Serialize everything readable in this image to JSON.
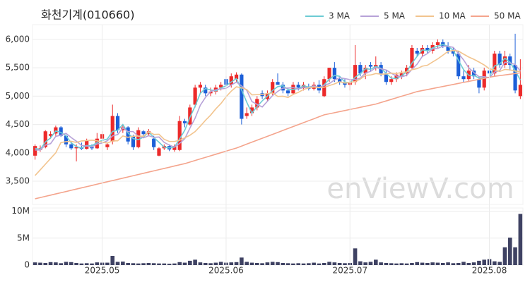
{
  "chart_data": [
    {
      "type": "candlestick",
      "title": "화천기계(010660)",
      "watermark": "enViewV.com",
      "up_color": "#ec2a2a",
      "down_color": "#1c5fd8",
      "grid": true,
      "ylim": [
        3090,
        6260
      ],
      "yticks": [
        {
          "value": 3500,
          "label": "3,500"
        },
        {
          "value": 4000,
          "label": "4,000"
        },
        {
          "value": 4500,
          "label": "4,500"
        },
        {
          "value": 5000,
          "label": "5,000"
        },
        {
          "value": 5500,
          "label": "5,500"
        },
        {
          "value": 6000,
          "label": "6,000"
        }
      ],
      "open": [
        3950,
        4050,
        4100,
        4300,
        4340,
        4450,
        4300,
        4150,
        4080,
        4100,
        4070,
        4100,
        4080,
        4250,
        4100,
        4200,
        4650,
        4400,
        4450,
        4300,
        4100,
        4380,
        4330,
        4250,
        3950,
        4080,
        4120,
        4050,
        4050,
        4560,
        4500,
        4850,
        5150,
        5150,
        5050,
        5080,
        5150,
        5300,
        5200,
        5300,
        5380,
        4650,
        4700,
        4800,
        5050,
        4950,
        5050,
        5250,
        5200,
        5100,
        5050,
        5200,
        5150,
        5150,
        5130,
        5200,
        5000,
        5300,
        5500,
        5300,
        5250,
        5200,
        5250,
        5550,
        5400,
        5550,
        5500,
        5550,
        5400,
        5250,
        5300,
        5350,
        5400,
        5500,
        5800,
        5750,
        5850,
        5800,
        5900,
        5950,
        5880,
        5800,
        5750,
        5350,
        5300,
        5450,
        5300,
        5150,
        5450,
        5400,
        5750,
        5550,
        5700,
        5550,
        5000
      ],
      "high": [
        4150,
        4130,
        4400,
        4380,
        4480,
        4470,
        4320,
        4200,
        4150,
        4180,
        4250,
        4150,
        4350,
        4380,
        4180,
        4850,
        4700,
        4500,
        4470,
        4320,
        4450,
        4400,
        4420,
        4300,
        4100,
        4150,
        4150,
        4150,
        4650,
        4600,
        4850,
        5200,
        5250,
        5200,
        5150,
        5200,
        5250,
        5350,
        5400,
        5420,
        5400,
        4800,
        4850,
        5000,
        5100,
        5100,
        5300,
        5400,
        5250,
        5150,
        5250,
        5250,
        5250,
        5220,
        5250,
        5280,
        5350,
        5500,
        5600,
        5350,
        5300,
        5300,
        5900,
        5600,
        5550,
        5600,
        5700,
        5600,
        5450,
        5350,
        5420,
        5450,
        5550,
        5900,
        5850,
        5900,
        5900,
        5950,
        6000,
        6000,
        5950,
        5850,
        5800,
        5450,
        5550,
        5500,
        5350,
        5500,
        5500,
        5800,
        5800,
        5800,
        5750,
        6100,
        5650
      ],
      "low": [
        3880,
        4020,
        4080,
        4250,
        4300,
        4280,
        4100,
        4050,
        3850,
        4050,
        4060,
        4050,
        4070,
        4220,
        4050,
        4150,
        4350,
        4350,
        4150,
        4050,
        4080,
        4280,
        4300,
        4050,
        3940,
        4050,
        4030,
        4020,
        4030,
        4450,
        4480,
        4800,
        5050,
        5000,
        5000,
        5030,
        5100,
        5150,
        5150,
        5250,
        4500,
        4600,
        4650,
        4750,
        4950,
        4900,
        5000,
        5200,
        5050,
        5000,
        5020,
        5100,
        5100,
        5100,
        5100,
        5050,
        4980,
        5250,
        5250,
        5200,
        5150,
        5100,
        5200,
        5350,
        5300,
        5450,
        5450,
        5350,
        5200,
        5200,
        5250,
        5300,
        5350,
        5480,
        5700,
        5700,
        5750,
        5750,
        5850,
        5850,
        5750,
        5700,
        5300,
        5250,
        5250,
        5300,
        5050,
        5100,
        5350,
        5350,
        5500,
        5500,
        5450,
        5050,
        4950
      ],
      "close": [
        4120,
        4080,
        4380,
        4330,
        4450,
        4300,
        4150,
        4080,
        4100,
        4070,
        4220,
        4080,
        4250,
        4330,
        4150,
        4650,
        4400,
        4450,
        4200,
        4100,
        4400,
        4330,
        4380,
        4100,
        4080,
        4120,
        4060,
        4120,
        4560,
        4520,
        4800,
        5150,
        5200,
        5050,
        5080,
        5150,
        5200,
        5200,
        5350,
        5380,
        4600,
        4700,
        4800,
        4950,
        5000,
        5050,
        5250,
        5200,
        5100,
        5050,
        5200,
        5150,
        5200,
        5130,
        5200,
        5100,
        5300,
        5500,
        5300,
        5250,
        5200,
        5250,
        5550,
        5400,
        5500,
        5520,
        5550,
        5400,
        5250,
        5300,
        5380,
        5400,
        5500,
        5850,
        5750,
        5850,
        5800,
        5900,
        5950,
        5880,
        5800,
        5750,
        5350,
        5300,
        5450,
        5350,
        5150,
        5450,
        5400,
        5750,
        5550,
        5700,
        5550,
        5100,
        5200
      ],
      "series": [
        {
          "name": "3 MA",
          "color": "#6ccbd4",
          "values": [
            4080,
            4060,
            4193,
            4263,
            4387,
            4360,
            4300,
            4177,
            4110,
            4083,
            4130,
            4123,
            4183,
            4220,
            4243,
            4377,
            4400,
            4500,
            4350,
            4250,
            4233,
            4277,
            4370,
            4270,
            4187,
            4100,
            4087,
            4100,
            4247,
            4400,
            4627,
            4823,
            5050,
            5133,
            5110,
            5093,
            5143,
            5183,
            5250,
            5310,
            5110,
            4893,
            4700,
            4817,
            4917,
            5000,
            5100,
            5167,
            5183,
            5117,
            5117,
            5133,
            5183,
            5160,
            5177,
            5143,
            5200,
            5300,
            5367,
            5350,
            5250,
            5233,
            5333,
            5400,
            5483,
            5473,
            5523,
            5490,
            5400,
            5317,
            5310,
            5360,
            5427,
            5583,
            5700,
            5817,
            5800,
            5850,
            5883,
            5910,
            5877,
            5810,
            5633,
            5467,
            5367,
            5367,
            5317,
            5317,
            5333,
            5533,
            5567,
            5667,
            5600,
            5450,
            5283
          ]
        },
        {
          "name": "5 MA",
          "color": "#b7a2d8",
          "values": [
            4050,
            4050,
            4137,
            4162,
            4290,
            4312,
            4344,
            4269,
            4205,
            4130,
            4120,
            4103,
            4157,
            4172,
            4213,
            4299,
            4322,
            4439,
            4375,
            4375,
            4292,
            4264,
            4302,
            4274,
            4279,
            4185,
            4137,
            4100,
            4167,
            4250,
            4437,
            4612,
            4839,
            4978,
            5080,
            5113,
            5127,
            5138,
            5197,
            5247,
            5180,
            5102,
            4905,
            4855,
            4809,
            4909,
            5009,
            5084,
            5142,
            5142,
            5150,
            5125,
            5150,
            5147,
            5180,
            5152,
            5189,
            5222,
            5284,
            5325,
            5309,
            5292,
            5292,
            5317,
            5408,
            5437,
            5503,
            5482,
            5462,
            5404,
            5355,
            5339,
            5369,
            5472,
            5564,
            5700,
            5750,
            5834,
            5842,
            5880,
            5880,
            5860,
            5755,
            5639,
            5500,
            5417,
            5342,
            5342,
            5325,
            5425,
            5450,
            5600,
            5584,
            5559,
            5442
          ]
        },
        {
          "name": "10 MA",
          "color": "#f2c48e",
          "values": [
            3600,
            3700,
            3800,
            3900,
            4000,
            4181,
            4197,
            4203,
            4184,
            4210,
            4216,
            4224,
            4213,
            4189,
            4172,
            4210,
            4213,
            4298,
            4274,
            4294,
            4296,
            4293,
            4371,
            4325,
            4327,
            4239,
            4201,
            4201,
            4221,
            4265,
            4311,
            4375,
            4470,
            4573,
            4665,
            4775,
            4870,
            4989,
            5088,
            5164,
            5147,
            5115,
            5022,
            5026,
            5028,
            5045,
            5056,
            4995,
            4999,
            4976,
            5030,
            5067,
            5117,
            5145,
            5161,
            5151,
            5157,
            5186,
            5216,
            5253,
            5231,
            5241,
            5257,
            5301,
            5367,
            5373,
            5398,
            5387,
            5390,
            5406,
            5396,
            5421,
            5426,
            5467,
            5484,
            5528,
            5545,
            5602,
            5657,
            5722,
            5790,
            5805,
            5795,
            5741,
            5690,
            5649,
            5601,
            5549,
            5482,
            5463,
            5434,
            5471,
            5463,
            5442,
            5434
          ]
        },
        {
          "name": "50 MA",
          "color": "#f4a48c",
          "values": [
            3190,
            3211,
            3233,
            3254,
            3276,
            3297,
            3318,
            3340,
            3361,
            3383,
            3404,
            3425,
            3447,
            3468,
            3490,
            3511,
            3532,
            3554,
            3575,
            3597,
            3618,
            3639,
            3661,
            3682,
            3704,
            3725,
            3746,
            3768,
            3789,
            3810,
            3838,
            3865,
            3893,
            3920,
            3948,
            3975,
            4003,
            4030,
            4058,
            4085,
            4119,
            4154,
            4188,
            4223,
            4257,
            4291,
            4326,
            4360,
            4395,
            4429,
            4463,
            4498,
            4532,
            4567,
            4601,
            4636,
            4670,
            4689,
            4708,
            4727,
            4746,
            4765,
            4784,
            4803,
            4822,
            4841,
            4860,
            4888,
            4915,
            4943,
            4970,
            4998,
            5025,
            5053,
            5080,
            5098,
            5116,
            5134,
            5152,
            5170,
            5188,
            5206,
            5224,
            5242,
            5260,
            5278,
            5296,
            5314,
            5332,
            5350,
            5362,
            5374,
            5386,
            5398,
            5410
          ]
        }
      ]
    },
    {
      "type": "bar",
      "color": "#3f4263",
      "grid": true,
      "ylim": [
        0,
        10600000
      ],
      "yticks": [
        0,
        {
          "value": 5000000,
          "label": "5M"
        },
        {
          "value": 10000000,
          "label": "10M"
        }
      ],
      "categories": [
        null,
        null,
        null,
        null,
        null,
        null,
        null,
        null,
        null,
        null,
        null,
        null,
        null,
        "2025.05",
        null,
        null,
        null,
        null,
        null,
        null,
        null,
        null,
        null,
        null,
        null,
        null,
        null,
        null,
        null,
        null,
        null,
        null,
        null,
        null,
        null,
        null,
        null,
        "2025.06",
        null,
        null,
        null,
        null,
        null,
        null,
        null,
        null,
        null,
        null,
        null,
        null,
        null,
        null,
        null,
        null,
        null,
        null,
        null,
        null,
        null,
        null,
        null,
        "2025.07",
        null,
        null,
        null,
        null,
        null,
        null,
        null,
        null,
        null,
        null,
        null,
        null,
        null,
        null,
        null,
        null,
        null,
        null,
        null,
        null,
        null,
        null,
        null,
        null,
        null,
        null,
        "2025.08",
        null,
        null,
        null,
        null,
        null,
        null
      ],
      "values": [
        500000,
        450000,
        400000,
        550000,
        500000,
        350000,
        600000,
        550000,
        400000,
        300000,
        350000,
        300000,
        500000,
        450000,
        450000,
        1700000,
        600000,
        650000,
        400000,
        350000,
        300000,
        350000,
        400000,
        350000,
        300000,
        300000,
        250000,
        300000,
        550000,
        450000,
        800000,
        1000000,
        500000,
        400000,
        350000,
        450000,
        600000,
        450000,
        500000,
        550000,
        1400000,
        600000,
        450000,
        400000,
        350000,
        500000,
        600000,
        550000,
        400000,
        350000,
        300000,
        350000,
        300000,
        350000,
        450000,
        300000,
        400000,
        600000,
        500000,
        400000,
        350000,
        400000,
        3100000,
        700000,
        500000,
        600000,
        1000000,
        500000,
        400000,
        350000,
        300000,
        350000,
        300000,
        400000,
        550000,
        450000,
        400000,
        500000,
        450000,
        400000,
        500000,
        350000,
        400000,
        600000,
        400000,
        500000,
        800000,
        1000000,
        1100000,
        700000,
        600000,
        3300000,
        5100000,
        3300000,
        9500000
      ]
    }
  ]
}
